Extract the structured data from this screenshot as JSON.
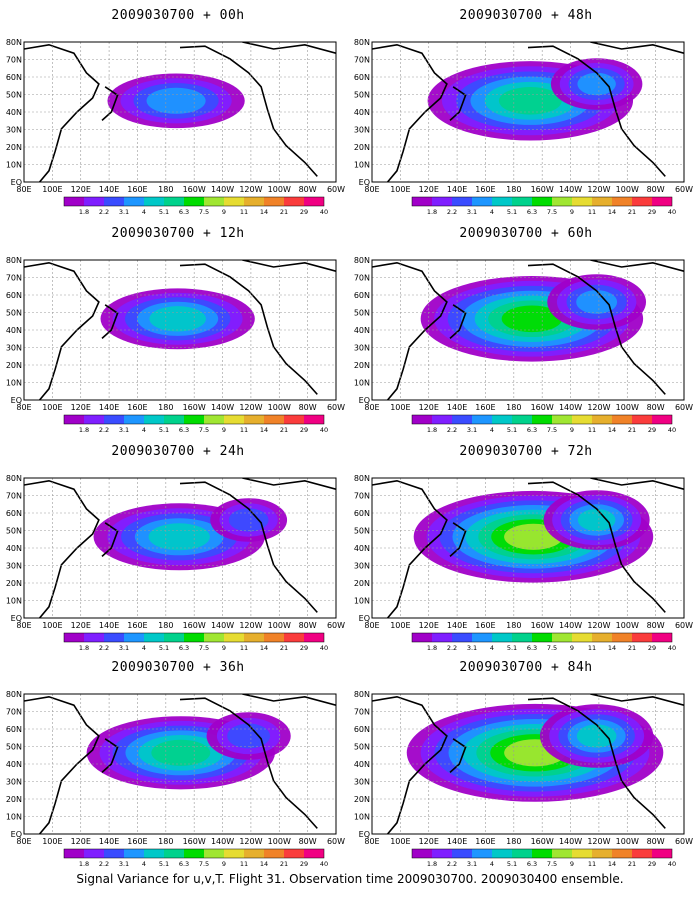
{
  "footer": "Signal Variance for u,v,T. Flight 31. Observation time 2009030700. 2009030400 ensemble.",
  "lat_labels": [
    "80N",
    "70N",
    "60N",
    "50N",
    "40N",
    "30N",
    "20N",
    "10N",
    "EQ"
  ],
  "lon_labels": [
    "80E",
    "100E",
    "120E",
    "140E",
    "160E",
    "180",
    "160W",
    "140W",
    "120W",
    "100W",
    "80W",
    "60W"
  ],
  "colorbar": {
    "labels": [
      "1.8",
      "2.2",
      "3.1",
      "4",
      "5.1",
      "6.3",
      "7.5",
      "9",
      "11",
      "14",
      "21",
      "29",
      "40"
    ],
    "colors": [
      "#a000c8",
      "#7f1fff",
      "#3a4cff",
      "#1e96ff",
      "#00c8c8",
      "#00d28c",
      "#00dc00",
      "#a0e632",
      "#e6dc32",
      "#e6af2d",
      "#f08228",
      "#fa3c3c",
      "#f00082"
    ]
  },
  "panels": [
    {
      "title": "2009030700 + 00h",
      "level": 0.15
    },
    {
      "title": "2009030700 + 48h",
      "level": 0.55
    },
    {
      "title": "2009030700 + 12h",
      "level": 0.25
    },
    {
      "title": "2009030700 + 60h",
      "level": 0.65
    },
    {
      "title": "2009030700 + 24h",
      "level": 0.35
    },
    {
      "title": "2009030700 + 72h",
      "level": 0.75
    },
    {
      "title": "2009030700 + 36h",
      "level": 0.45
    },
    {
      "title": "2009030700 + 84h",
      "level": 0.85
    }
  ]
}
